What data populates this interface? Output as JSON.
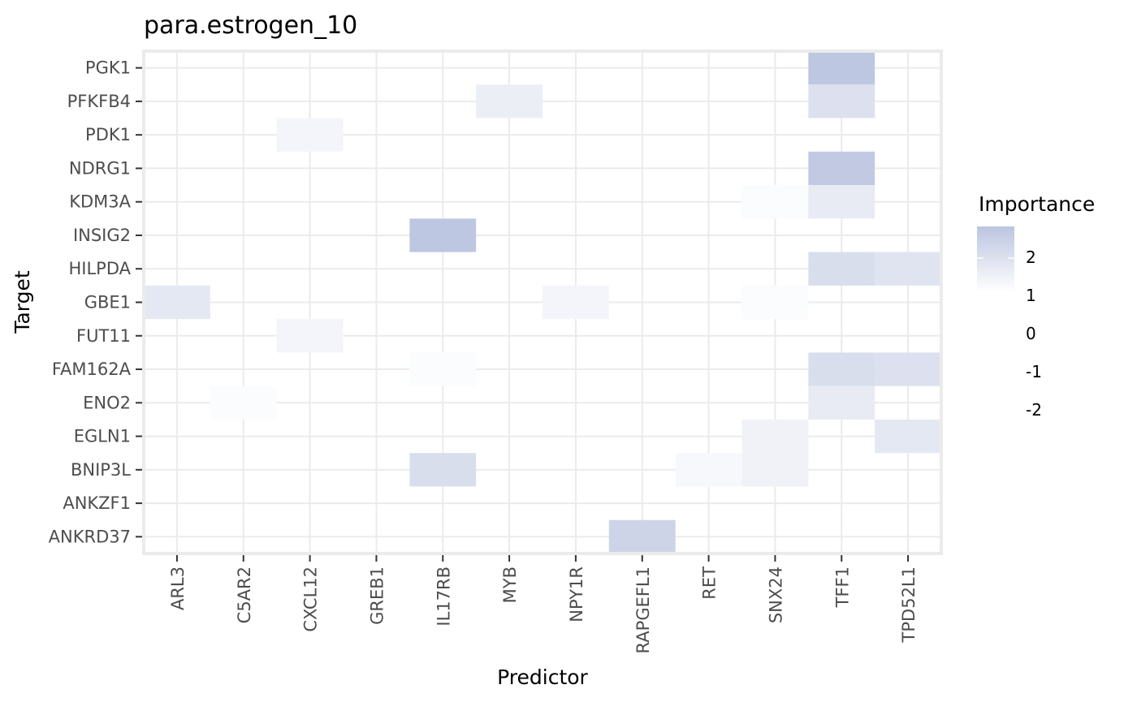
{
  "chart_data": {
    "type": "heatmap",
    "title": "para.estrogen_10",
    "xlabel": "Predictor",
    "ylabel": "Target",
    "x_categories": [
      "ARL3",
      "C5AR2",
      "CXCL12",
      "GREB1",
      "IL17RB",
      "MYB",
      "NPY1R",
      "RAPGEFL1",
      "RET",
      "SNX24",
      "TFF1",
      "TPD52L1"
    ],
    "y_categories": [
      "PGK1",
      "PFKFB4",
      "PDK1",
      "NDRG1",
      "KDM3A",
      "INSIG2",
      "HILPDA",
      "GBE1",
      "FUT11",
      "FAM162A",
      "ENO2",
      "EGLN1",
      "BNIP3L",
      "ANKZF1",
      "ANKRD37"
    ],
    "cells": [
      {
        "x": "TFF1",
        "y": "PGK1",
        "value": 2.7
      },
      {
        "x": "MYB",
        "y": "PFKFB4",
        "value": 1.5
      },
      {
        "x": "TFF1",
        "y": "PFKFB4",
        "value": 1.9
      },
      {
        "x": "CXCL12",
        "y": "PDK1",
        "value": 1.3
      },
      {
        "x": "TFF1",
        "y": "NDRG1",
        "value": 2.6
      },
      {
        "x": "SNX24",
        "y": "KDM3A",
        "value": 1.1
      },
      {
        "x": "TFF1",
        "y": "KDM3A",
        "value": 1.6
      },
      {
        "x": "IL17RB",
        "y": "INSIG2",
        "value": 2.7
      },
      {
        "x": "TFF1",
        "y": "HILPDA",
        "value": 2.0
      },
      {
        "x": "TPD52L1",
        "y": "HILPDA",
        "value": 1.8
      },
      {
        "x": "ARL3",
        "y": "GBE1",
        "value": 1.7
      },
      {
        "x": "NPY1R",
        "y": "GBE1",
        "value": 1.3
      },
      {
        "x": "SNX24",
        "y": "GBE1",
        "value": 1.1
      },
      {
        "x": "CXCL12",
        "y": "FUT11",
        "value": 1.3
      },
      {
        "x": "IL17RB",
        "y": "FAM162A",
        "value": 1.1
      },
      {
        "x": "TFF1",
        "y": "FAM162A",
        "value": 2.0
      },
      {
        "x": "TPD52L1",
        "y": "FAM162A",
        "value": 1.9
      },
      {
        "x": "C5AR2",
        "y": "ENO2",
        "value": 1.1
      },
      {
        "x": "TFF1",
        "y": "ENO2",
        "value": 1.6
      },
      {
        "x": "SNX24",
        "y": "EGLN1",
        "value": 1.4
      },
      {
        "x": "TPD52L1",
        "y": "EGLN1",
        "value": 1.7
      },
      {
        "x": "IL17RB",
        "y": "BNIP3L",
        "value": 2.0
      },
      {
        "x": "RET",
        "y": "BNIP3L",
        "value": 1.2
      },
      {
        "x": "SNX24",
        "y": "BNIP3L",
        "value": 1.4
      },
      {
        "x": "RAPGEFL1",
        "y": "ANKRD37",
        "value": 2.3
      }
    ],
    "legend": {
      "title": "Importance",
      "labels": [
        "2",
        "1",
        "0",
        "-1",
        "-2"
      ],
      "gradient_bottom": "#ffffff",
      "gradient_top": "#bcc5e0"
    },
    "colors": {
      "high": "#bcc5e0",
      "low": "#ffffff",
      "panel_border": "#ebebeb"
    },
    "grid": true,
    "legend_position": "right"
  }
}
